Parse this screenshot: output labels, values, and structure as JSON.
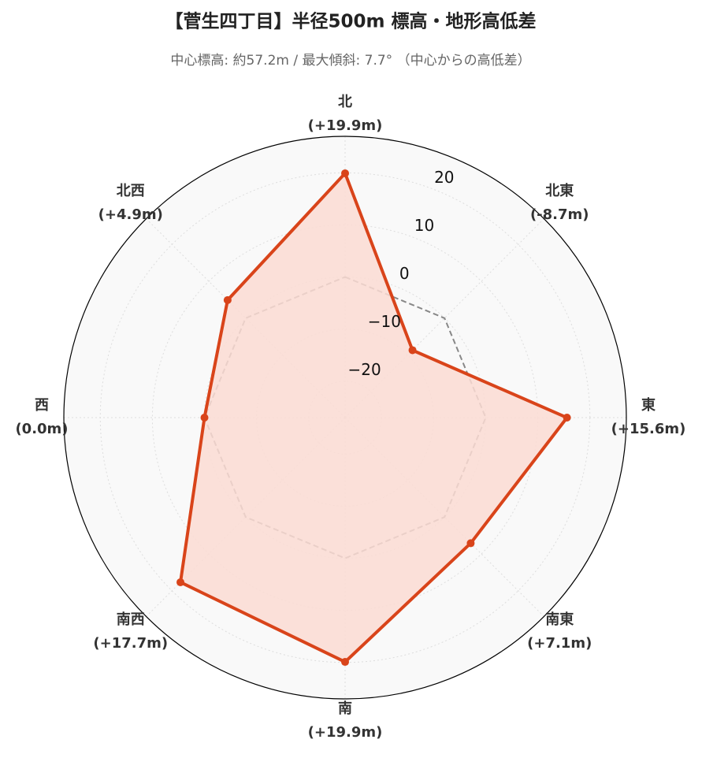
{
  "chart_data": {
    "type": "radar",
    "title": "【菅生四丁目】半径500m 標高・地形高低差",
    "subtitle": "中心標高: 約57.2m / 最大傾斜: 7.7° （中心からの高低差）",
    "categories": [
      "北",
      "北東",
      "東",
      "南東",
      "南",
      "南西",
      "西",
      "北西"
    ],
    "values": [
      19.9,
      -8.7,
      15.6,
      7.1,
      19.9,
      17.7,
      0.0,
      4.9
    ],
    "value_labels": [
      "(+19.9m)",
      "(-8.7m)",
      "(+15.6m)",
      "(+7.1m)",
      "(+19.9m)",
      "(+17.7m)",
      "(0.0m)",
      "(+4.9m)"
    ],
    "color": "#d9441a",
    "fill_color": "#fcdcd3",
    "rlim": [
      -27,
      27
    ],
    "rticks": [
      {
        "value": -20,
        "label": "−20"
      },
      {
        "value": -10,
        "label": "−10"
      },
      0,
      10,
      20
    ],
    "reference_line": {
      "value": 0,
      "color": "#888888"
    },
    "grid": true
  }
}
